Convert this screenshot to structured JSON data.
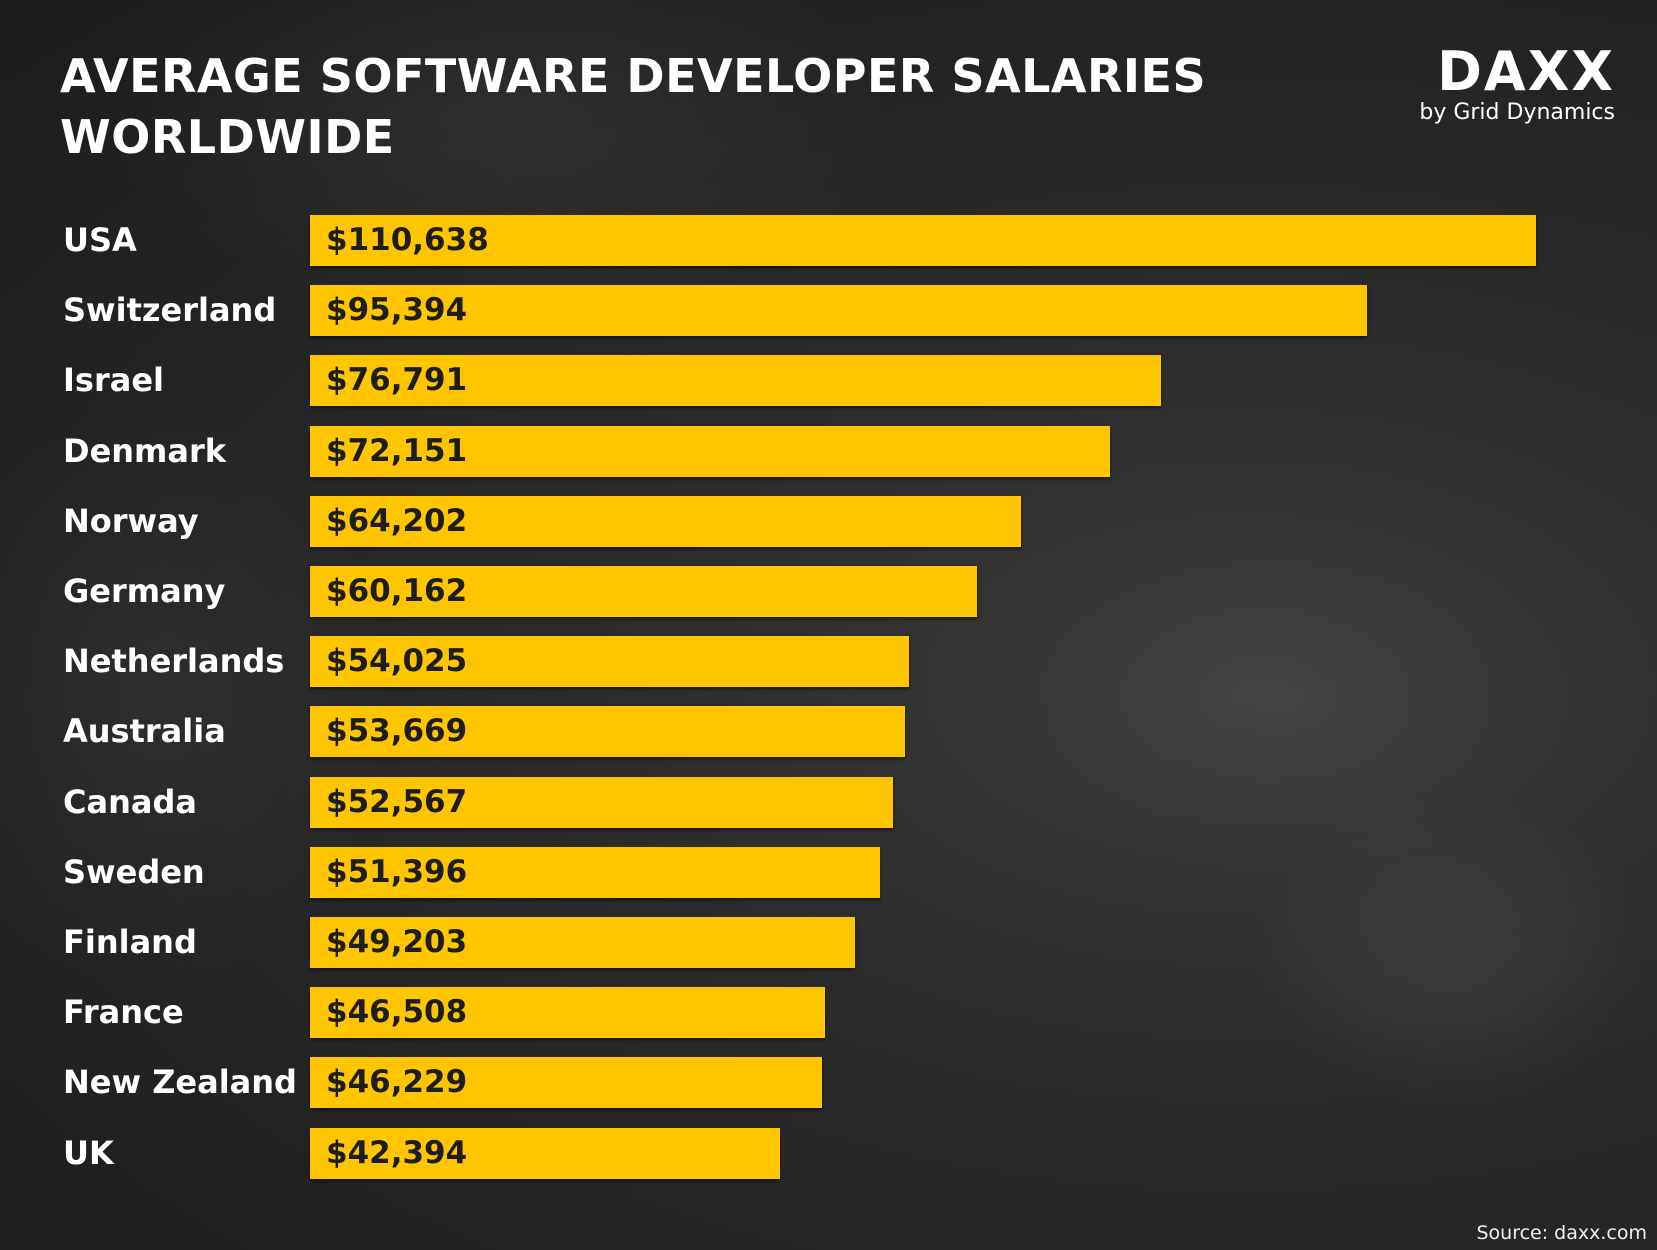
{
  "chart_data": {
    "type": "bar",
    "orientation": "horizontal",
    "title": "AVERAGE SOFTWARE DEVELOPER SALARIES WORLDWIDE",
    "title_lines": [
      "AVERAGE SOFTWARE DEVELOPER SALARIES",
      "WORLDWIDE"
    ],
    "categories": [
      "USA",
      "Switzerland",
      "Israel",
      "Denmark",
      "Norway",
      "Germany",
      "Netherlands",
      "Australia",
      "Canada",
      "Sweden",
      "Finland",
      "France",
      "New Zealand",
      "UK"
    ],
    "values": [
      110638,
      95394,
      76791,
      72151,
      64202,
      60162,
      54025,
      53669,
      52567,
      51396,
      49203,
      46508,
      46229,
      42394
    ],
    "data_labels": [
      "$110,638",
      "$95,394",
      "$76,791",
      "$72,151",
      "$64,202",
      "$60,162",
      "$54,025",
      "$53,669",
      "$52,567",
      "$51,396",
      "$49,203",
      "$46,508",
      "$46,229",
      "$42,394"
    ],
    "xlabel": "",
    "ylabel": "",
    "xlim": [
      0,
      110638
    ],
    "grid": false,
    "bar_color": "#ffc600"
  },
  "logo": {
    "mark": "DAXX",
    "sub": "by Grid Dynamics"
  },
  "source": "Source: daxx.com"
}
